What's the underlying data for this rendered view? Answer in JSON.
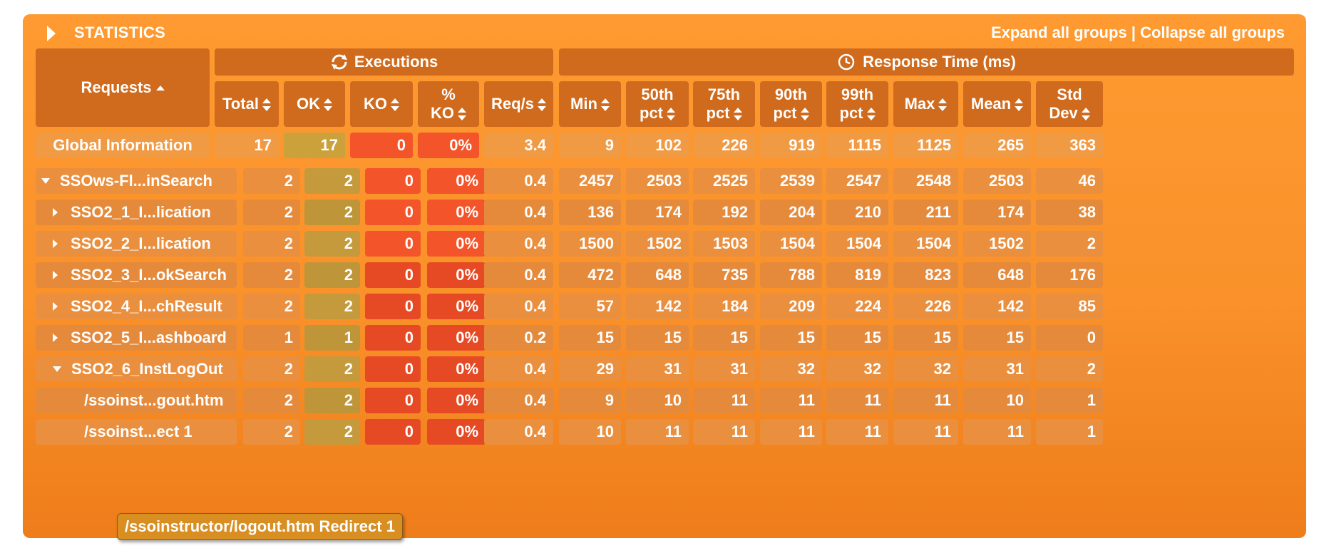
{
  "panel": {
    "title": "STATISTICS",
    "expand_label": "Expand all groups",
    "separator": "|",
    "collapse_label": "Collapse all groups"
  },
  "groups": {
    "executions": "Executions",
    "response_time": "Response Time (ms)"
  },
  "columns": {
    "requests": "Requests",
    "total": "Total",
    "ok": "OK",
    "ko": "KO",
    "pct_ko_1": "%",
    "pct_ko_2": "KO",
    "reqs": "Req/s",
    "min": "Min",
    "p50_1": "50th",
    "p50_2": "pct",
    "p75_1": "75th",
    "p75_2": "pct",
    "p90_1": "90th",
    "p90_2": "pct",
    "p99_1": "99th",
    "p99_2": "pct",
    "max": "Max",
    "mean": "Mean",
    "std_1": "Std",
    "std_2": "Dev"
  },
  "global": {
    "name": "Global Information",
    "values": [
      "17",
      "17",
      "0",
      "0%",
      "3.4",
      "9",
      "102",
      "226",
      "919",
      "1115",
      "1125",
      "265",
      "363"
    ]
  },
  "rows": [
    {
      "name": "SSOws-Fl...inSearch",
      "toggle": "expanded",
      "level": 0,
      "values": [
        "2",
        "2",
        "0",
        "0%",
        "0.4",
        "2457",
        "2503",
        "2525",
        "2539",
        "2547",
        "2548",
        "2503",
        "46"
      ]
    },
    {
      "name": "SSO2_1_I...lication",
      "toggle": "collapsed",
      "level": 1,
      "values": [
        "2",
        "2",
        "0",
        "0%",
        "0.4",
        "136",
        "174",
        "192",
        "204",
        "210",
        "211",
        "174",
        "38"
      ]
    },
    {
      "name": "SSO2_2_I...lication",
      "toggle": "collapsed",
      "level": 1,
      "values": [
        "2",
        "2",
        "0",
        "0%",
        "0.4",
        "1500",
        "1502",
        "1503",
        "1504",
        "1504",
        "1504",
        "1502",
        "2"
      ]
    },
    {
      "name": "SSO2_3_I...okSearch",
      "toggle": "collapsed",
      "level": 1,
      "values": [
        "2",
        "2",
        "0",
        "0%",
        "0.4",
        "472",
        "648",
        "735",
        "788",
        "819",
        "823",
        "648",
        "176"
      ]
    },
    {
      "name": "SSO2_4_I...chResult",
      "toggle": "collapsed",
      "level": 1,
      "values": [
        "2",
        "2",
        "0",
        "0%",
        "0.4",
        "57",
        "142",
        "184",
        "209",
        "224",
        "226",
        "142",
        "85"
      ]
    },
    {
      "name": "SSO2_5_I...ashboard",
      "toggle": "collapsed",
      "level": 1,
      "values": [
        "1",
        "1",
        "0",
        "0%",
        "0.2",
        "15",
        "15",
        "15",
        "15",
        "15",
        "15",
        "15",
        "0"
      ]
    },
    {
      "name": "SSO2_6_InstLogOut",
      "toggle": "expanded",
      "level": 1,
      "values": [
        "2",
        "2",
        "0",
        "0%",
        "0.4",
        "29",
        "31",
        "31",
        "32",
        "32",
        "32",
        "31",
        "2"
      ]
    },
    {
      "name": "/ssoinst...gout.htm",
      "toggle": "none",
      "level": 2,
      "values": [
        "2",
        "2",
        "0",
        "0%",
        "0.4",
        "9",
        "10",
        "11",
        "11",
        "11",
        "11",
        "10",
        "1"
      ]
    },
    {
      "name": "/ssoinst...ect 1",
      "toggle": "none",
      "level": 2,
      "values": [
        "2",
        "2",
        "0",
        "0%",
        "0.4",
        "10",
        "11",
        "11",
        "11",
        "11",
        "11",
        "11",
        "1"
      ]
    }
  ],
  "tooltip": "/ssoinstructor/logout.htm Redirect 1",
  "colors": {
    "panel": "#fe9a31",
    "header": "#d06a1c",
    "ok_cell": "#c29a3a",
    "ko_cell": "#f4542a",
    "text": "#ffffff"
  },
  "icons": {
    "executions": "refresh-icon",
    "response_time": "clock-icon",
    "title": "triangle-right-icon"
  }
}
